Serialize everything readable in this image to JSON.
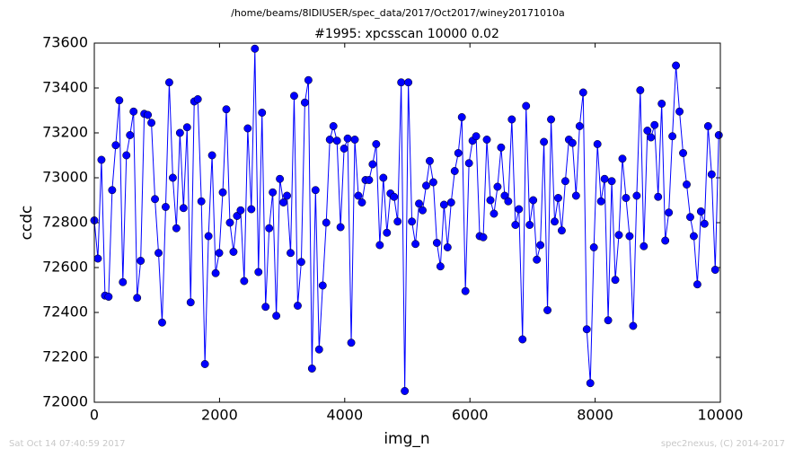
{
  "chart_data": {
    "type": "line",
    "title": "/home/beams/8IDIUSER/spec_data/2017/Oct2017/winey20171010a",
    "subtitle": "#1995: xpcsscan 10000 0.02",
    "x_label": "img_n",
    "y_label": "ccdc",
    "annotations": [
      "Sat Oct 14 07:40:59 2017",
      "spec2nexus, (C) 2014-2017"
    ],
    "xlim": [
      0,
      10000
    ],
    "xticks": [
      0,
      2000,
      4000,
      6000,
      8000,
      10000
    ],
    "ylim": [
      72000,
      73600
    ],
    "yticks": [
      72000,
      72200,
      72400,
      72600,
      72800,
      73000,
      73200,
      73400,
      73600
    ],
    "grid": false,
    "x": [
      0,
      57,
      114,
      171,
      228,
      285,
      342,
      399,
      456,
      513,
      570,
      627,
      684,
      741,
      798,
      855,
      912,
      969,
      1026,
      1083,
      1140,
      1197,
      1254,
      1311,
      1368,
      1425,
      1482,
      1539,
      1596,
      1653,
      1710,
      1767,
      1824,
      1881,
      1938,
      1995,
      2052,
      2109,
      2166,
      2223,
      2280,
      2337,
      2394,
      2451,
      2508,
      2565,
      2622,
      2679,
      2736,
      2793,
      2850,
      2907,
      2964,
      3021,
      3078,
      3135,
      3192,
      3249,
      3306,
      3363,
      3420,
      3477,
      3534,
      3591,
      3648,
      3705,
      3762,
      3819,
      3876,
      3933,
      3990,
      4047,
      4104,
      4161,
      4218,
      4275,
      4332,
      4389,
      4446,
      4503,
      4560,
      4617,
      4674,
      4731,
      4788,
      4845,
      4902,
      4959,
      5016,
      5073,
      5130,
      5187,
      5244,
      5301,
      5358,
      5415,
      5472,
      5529,
      5586,
      5643,
      5700,
      5757,
      5814,
      5871,
      5928,
      5985,
      6042,
      6099,
      6156,
      6213,
      6270,
      6327,
      6384,
      6441,
      6498,
      6555,
      6612,
      6669,
      6726,
      6783,
      6840,
      6897,
      6954,
      7011,
      7068,
      7125,
      7182,
      7239,
      7296,
      7353,
      7410,
      7467,
      7524,
      7581,
      7638,
      7695,
      7752,
      7809,
      7866,
      7923,
      7980,
      8037,
      8094,
      8151,
      8208,
      8265,
      8322,
      8379,
      8436,
      8493,
      8550,
      8607,
      8664,
      8721,
      8778,
      8835,
      8892,
      8949,
      9006,
      9063,
      9120,
      9177,
      9234,
      9291,
      9348,
      9405,
      9462,
      9519,
      9576,
      9633,
      9690,
      9747,
      9804,
      9861,
      9918,
      9975
    ],
    "series": [
      {
        "color": "#0000ff",
        "values": [
          72810,
          72640,
          73080,
          72475,
          72470,
          72945,
          73145,
          73345,
          72535,
          73100,
          73190,
          73295,
          72465,
          72630,
          73285,
          73280,
          73245,
          72905,
          72665,
          72355,
          72870,
          73425,
          73000,
          72775,
          73200,
          72865,
          73225,
          72445,
          73340,
          73350,
          72895,
          72170,
          72740,
          73100,
          72575,
          72665,
          72935,
          73305,
          72800,
          72670,
          72830,
          72855,
          72540,
          73220,
          72860,
          73575,
          72580,
          73290,
          72425,
          72775,
          72935,
          72385,
          72995,
          72890,
          72920,
          72665,
          73365,
          72430,
          72625,
          73335,
          73435,
          72150,
          72945,
          72235,
          72520,
          72800,
          73170,
          73230,
          73165,
          72780,
          73130,
          73175,
          72265,
          73170,
          72920,
          72890,
          72990,
          72990,
          73060,
          73150,
          72700,
          73000,
          72755,
          72930,
          72915,
          72805,
          73425,
          72050,
          73425,
          72805,
          72705,
          72885,
          72855,
          72965,
          73075,
          72980,
          72710,
          72605,
          72880,
          72690,
          72890,
          73030,
          73110,
          73270,
          72495,
          73065,
          73165,
          73185,
          72740,
          72735,
          73170,
          72900,
          72840,
          72960,
          73135,
          72920,
          72895,
          73260,
          72790,
          72860,
          72280,
          73320,
          72790,
          72900,
          72635,
          72700,
          73160,
          72410,
          73260,
          72805,
          72910,
          72765,
          72985,
          73170,
          73155,
          72920,
          73230,
          73380,
          72325,
          72085,
          72690,
          73150,
          72895,
          72995,
          72365,
          72985,
          72545,
          72745,
          73085,
          72910,
          72740,
          72340,
          72920,
          73390,
          72695,
          73210,
          73180,
          73235,
          72915,
          73330,
          72720,
          72845,
          73185,
          73500,
          73295,
          73110,
          72970,
          72825,
          72740,
          72525,
          72850,
          72795,
          73230,
          73015,
          72590,
          73190
        ]
      }
    ]
  }
}
